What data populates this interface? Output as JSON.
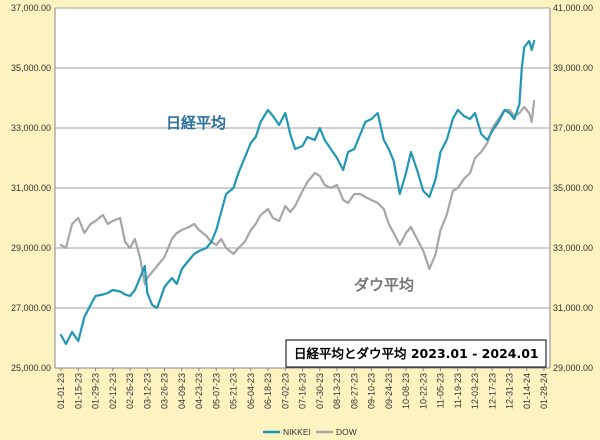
{
  "chart_data": {
    "type": "line",
    "title": "日経平均とダウ平均 2023.01 - 2024.01",
    "annotations": [
      "日経平均",
      "ダウ平均"
    ],
    "x_tick_labels": [
      "01-01-23",
      "01-15-23",
      "01-29-23",
      "02-12-23",
      "02-26-23",
      "03-12-23",
      "03-26-23",
      "04-09-23",
      "04-23-23",
      "05-07-23",
      "05-21-23",
      "06-04-23",
      "06-18-23",
      "07-02-23",
      "07-16-23",
      "07-30-23",
      "08-13-23",
      "08-27-23",
      "09-10-23",
      "09-24-23",
      "10-08-23",
      "10-22-23",
      "11-05-23",
      "11-19-23",
      "12-03-23",
      "12-17-23",
      "12-31-23",
      "01-14-24",
      "01-28-24"
    ],
    "y_left": {
      "ylim": [
        25000,
        37000
      ],
      "ticks": [
        "25,000.00",
        "27,000.00",
        "29,000.00",
        "31,000.00",
        "33,000.00",
        "35,000.00",
        "37,000.00"
      ]
    },
    "y_right": {
      "ylim": [
        29000,
        41000
      ],
      "ticks": [
        "29,000.00",
        "31,000.00",
        "33,000.00",
        "35,000.00",
        "37,000.00",
        "39,000.00",
        "41,000.00"
      ]
    },
    "grid": true,
    "legend_position": "bottom",
    "series": [
      {
        "name": "NIKKEI",
        "axis": "left",
        "color": "#1f97b5",
        "points": [
          [
            "01-01-23",
            26100
          ],
          [
            "01-05-23",
            25800
          ],
          [
            "01-10-23",
            26200
          ],
          [
            "01-15-23",
            25900
          ],
          [
            "01-20-23",
            26700
          ],
          [
            "01-25-23",
            27100
          ],
          [
            "01-29-23",
            27400
          ],
          [
            "02-04-23",
            27450
          ],
          [
            "02-08-23",
            27500
          ],
          [
            "02-12-23",
            27600
          ],
          [
            "02-18-23",
            27550
          ],
          [
            "02-22-23",
            27450
          ],
          [
            "02-26-23",
            27400
          ],
          [
            "03-02-23",
            27600
          ],
          [
            "03-06-23",
            28000
          ],
          [
            "03-10-23",
            28400
          ],
          [
            "03-12-23",
            27500
          ],
          [
            "03-16-23",
            27100
          ],
          [
            "03-20-23",
            27000
          ],
          [
            "03-26-23",
            27700
          ],
          [
            "04-01-23",
            28000
          ],
          [
            "04-05-23",
            27800
          ],
          [
            "04-09-23",
            28300
          ],
          [
            "04-15-23",
            28600
          ],
          [
            "04-19-23",
            28800
          ],
          [
            "04-23-23",
            28900
          ],
          [
            "04-29-23",
            29000
          ],
          [
            "05-03-23",
            29200
          ],
          [
            "05-07-23",
            29600
          ],
          [
            "05-11-23",
            30200
          ],
          [
            "05-15-23",
            30800
          ],
          [
            "05-21-23",
            31000
          ],
          [
            "05-25-23",
            31500
          ],
          [
            "05-30-23",
            32000
          ],
          [
            "06-04-23",
            32500
          ],
          [
            "06-08-23",
            32700
          ],
          [
            "06-12-23",
            33200
          ],
          [
            "06-18-23",
            33600
          ],
          [
            "06-22-23",
            33400
          ],
          [
            "06-27-23",
            33100
          ],
          [
            "07-02-23",
            33500
          ],
          [
            "07-06-23",
            32800
          ],
          [
            "07-10-23",
            32300
          ],
          [
            "07-16-23",
            32400
          ],
          [
            "07-20-23",
            32700
          ],
          [
            "07-26-23",
            32600
          ],
          [
            "07-30-23",
            33000
          ],
          [
            "08-03-23",
            32600
          ],
          [
            "08-08-23",
            32300
          ],
          [
            "08-13-23",
            32000
          ],
          [
            "08-18-23",
            31600
          ],
          [
            "08-22-23",
            32200
          ],
          [
            "08-27-23",
            32300
          ],
          [
            "09-01-23",
            32800
          ],
          [
            "09-05-23",
            33200
          ],
          [
            "09-10-23",
            33300
          ],
          [
            "09-15-23",
            33500
          ],
          [
            "09-20-23",
            32600
          ],
          [
            "09-24-23",
            32300
          ],
          [
            "09-28-23",
            31900
          ],
          [
            "10-03-23",
            30800
          ],
          [
            "10-08-23",
            31500
          ],
          [
            "10-12-23",
            32200
          ],
          [
            "10-17-23",
            31600
          ],
          [
            "10-22-23",
            30900
          ],
          [
            "10-27-23",
            30700
          ],
          [
            "11-01-23",
            31300
          ],
          [
            "11-05-23",
            32200
          ],
          [
            "11-10-23",
            32600
          ],
          [
            "11-15-23",
            33300
          ],
          [
            "11-19-23",
            33600
          ],
          [
            "11-24-23",
            33400
          ],
          [
            "11-29-23",
            33300
          ],
          [
            "12-03-23",
            33500
          ],
          [
            "12-08-23",
            32800
          ],
          [
            "12-13-23",
            32600
          ],
          [
            "12-17-23",
            32900
          ],
          [
            "12-22-23",
            33200
          ],
          [
            "12-27-23",
            33600
          ],
          [
            "12-31-23",
            33500
          ],
          [
            "01-04-24",
            33300
          ],
          [
            "01-08-24",
            33800
          ],
          [
            "01-10-24",
            35000
          ],
          [
            "01-12-24",
            35700
          ],
          [
            "01-16-24",
            35900
          ],
          [
            "01-18-24",
            35600
          ],
          [
            "01-20-24",
            35900
          ]
        ]
      },
      {
        "name": "DOW",
        "axis": "right",
        "color": "#a6a6a6",
        "points": [
          [
            "01-01-23",
            33100
          ],
          [
            "01-05-23",
            33000
          ],
          [
            "01-10-23",
            33800
          ],
          [
            "01-15-23",
            34000
          ],
          [
            "01-20-23",
            33500
          ],
          [
            "01-25-23",
            33800
          ],
          [
            "01-29-23",
            33900
          ],
          [
            "02-04-23",
            34100
          ],
          [
            "02-08-23",
            33800
          ],
          [
            "02-12-23",
            33900
          ],
          [
            "02-18-23",
            34000
          ],
          [
            "02-22-23",
            33200
          ],
          [
            "02-26-23",
            33000
          ],
          [
            "03-02-23",
            33300
          ],
          [
            "03-06-23",
            32700
          ],
          [
            "03-10-23",
            31800
          ],
          [
            "03-12-23",
            32000
          ],
          [
            "03-16-23",
            32200
          ],
          [
            "03-20-23",
            32400
          ],
          [
            "03-26-23",
            32700
          ],
          [
            "04-01-23",
            33300
          ],
          [
            "04-05-23",
            33500
          ],
          [
            "04-09-23",
            33600
          ],
          [
            "04-15-23",
            33700
          ],
          [
            "04-19-23",
            33800
          ],
          [
            "04-23-23",
            33600
          ],
          [
            "04-29-23",
            33400
          ],
          [
            "05-03-23",
            33200
          ],
          [
            "05-07-23",
            33100
          ],
          [
            "05-11-23",
            33300
          ],
          [
            "05-15-23",
            33000
          ],
          [
            "05-21-23",
            32800
          ],
          [
            "05-25-23",
            33000
          ],
          [
            "05-30-23",
            33200
          ],
          [
            "06-04-23",
            33600
          ],
          [
            "06-08-23",
            33800
          ],
          [
            "06-12-23",
            34100
          ],
          [
            "06-18-23",
            34300
          ],
          [
            "06-22-23",
            34000
          ],
          [
            "06-27-23",
            33900
          ],
          [
            "07-02-23",
            34400
          ],
          [
            "07-06-23",
            34200
          ],
          [
            "07-10-23",
            34400
          ],
          [
            "07-16-23",
            34900
          ],
          [
            "07-20-23",
            35200
          ],
          [
            "07-26-23",
            35500
          ],
          [
            "07-30-23",
            35400
          ],
          [
            "08-03-23",
            35100
          ],
          [
            "08-08-23",
            35000
          ],
          [
            "08-13-23",
            35100
          ],
          [
            "08-18-23",
            34600
          ],
          [
            "08-22-23",
            34500
          ],
          [
            "08-27-23",
            34800
          ],
          [
            "09-01-23",
            34800
          ],
          [
            "09-05-23",
            34700
          ],
          [
            "09-10-23",
            34600
          ],
          [
            "09-15-23",
            34500
          ],
          [
            "09-20-23",
            34300
          ],
          [
            "09-24-23",
            33800
          ],
          [
            "09-28-23",
            33500
          ],
          [
            "10-03-23",
            33100
          ],
          [
            "10-08-23",
            33500
          ],
          [
            "10-12-23",
            33700
          ],
          [
            "10-17-23",
            33300
          ],
          [
            "10-22-23",
            32900
          ],
          [
            "10-27-23",
            32300
          ],
          [
            "11-01-23",
            32800
          ],
          [
            "11-05-23",
            33600
          ],
          [
            "11-10-23",
            34100
          ],
          [
            "11-15-23",
            34900
          ],
          [
            "11-19-23",
            35000
          ],
          [
            "11-24-23",
            35300
          ],
          [
            "11-29-23",
            35500
          ],
          [
            "12-03-23",
            36000
          ],
          [
            "12-08-23",
            36200
          ],
          [
            "12-13-23",
            36500
          ],
          [
            "12-17-23",
            37000
          ],
          [
            "12-22-23",
            37300
          ],
          [
            "12-27-23",
            37600
          ],
          [
            "12-31-23",
            37600
          ],
          [
            "01-04-24",
            37400
          ],
          [
            "01-08-24",
            37500
          ],
          [
            "01-10-24",
            37600
          ],
          [
            "01-12-24",
            37700
          ],
          [
            "01-16-24",
            37500
          ],
          [
            "01-18-24",
            37200
          ],
          [
            "01-20-24",
            37900
          ]
        ]
      }
    ]
  }
}
